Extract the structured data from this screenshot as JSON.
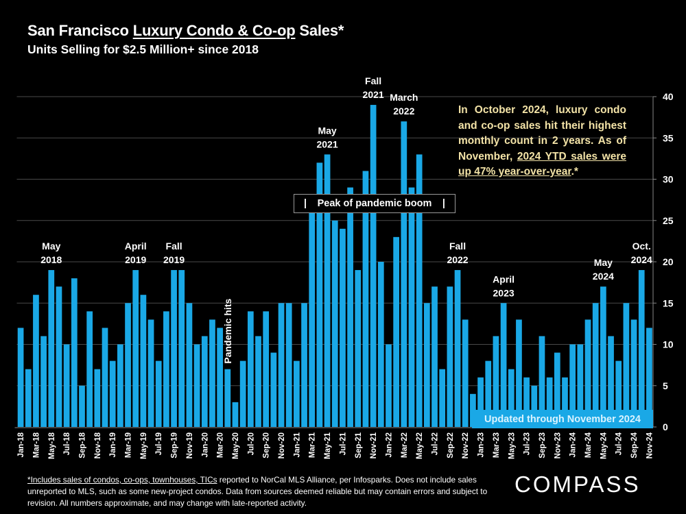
{
  "header": {
    "title_pre": "San Francisco ",
    "title_underlined": "Luxury Condo & Co-op",
    "title_post": " Sales*",
    "subtitle": "Units Selling for $2.5 Million+ since 2018"
  },
  "callout": {
    "text_pre": "In October 2024, luxury condo and co-op sales hit their highest monthly count in 2 years. As of November, ",
    "text_underlined": "2024 YTD sales were up 47% year-over-year",
    "text_post": ".*"
  },
  "peak_box": {
    "left_bar": "|",
    "label": "Peak of pandemic boom",
    "right_bar": "|"
  },
  "updated_label": "Updated through November 2024",
  "footnote": {
    "underlined": "*Includes sales of condos, co-ops, townhouses, TICs",
    "rest": " reported to NorCal MLS Alliance, per Infosparks. Does not include sales unreported to MLS, such as some new-project condos. Data from sources deemed reliable but may contain errors and subject to revision.  All numbers approximate, and may change with late-reported activity."
  },
  "logo": "COMPASS",
  "colors": {
    "bar": "#1aa8e6",
    "callout": "#f3e3a7",
    "grid": "#4a4a4a",
    "background": "#000000"
  },
  "chart_data": {
    "type": "bar",
    "title": "San Francisco Luxury Condo & Co-op Sales*",
    "subtitle": "Units Selling for $2.5 Million+ since 2018",
    "xlabel": "",
    "ylabel": "",
    "ylim": [
      0,
      40
    ],
    "yticks": [
      0,
      5,
      10,
      15,
      20,
      25,
      30,
      35,
      40
    ],
    "y_axis_side": "right",
    "grid": true,
    "categories": [
      "Jan-18",
      "Feb-18",
      "Mar-18",
      "Apr-18",
      "May-18",
      "Jun-18",
      "Jul-18",
      "Aug-18",
      "Sep-18",
      "Oct-18",
      "Nov-18",
      "Dec-18",
      "Jan-19",
      "Feb-19",
      "Mar-19",
      "Apr-19",
      "May-19",
      "Jun-19",
      "Jul-19",
      "Aug-19",
      "Sep-19",
      "Oct-19",
      "Nov-19",
      "Dec-19",
      "Jan-20",
      "Feb-20",
      "Mar-20",
      "Apr-20",
      "May-20",
      "Jun-20",
      "Jul-20",
      "Aug-20",
      "Sep-20",
      "Oct-20",
      "Nov-20",
      "Dec-20",
      "Jan-21",
      "Feb-21",
      "Mar-21",
      "Apr-21",
      "May-21",
      "Jun-21",
      "Jul-21",
      "Aug-21",
      "Sep-21",
      "Oct-21",
      "Nov-21",
      "Dec-21",
      "Jan-22",
      "Feb-22",
      "Mar-22",
      "Apr-22",
      "May-22",
      "Jun-22",
      "Jul-22",
      "Aug-22",
      "Sep-22",
      "Oct-22",
      "Nov-22",
      "Dec-22",
      "Jan-23",
      "Feb-23",
      "Mar-23",
      "Apr-23",
      "May-23",
      "Jun-23",
      "Jul-23",
      "Aug-23",
      "Sep-23",
      "Oct-23",
      "Nov-23",
      "Dec-23",
      "Jan-24",
      "Feb-24",
      "Mar-24",
      "Apr-24",
      "May-24",
      "Jun-24",
      "Jul-24",
      "Aug-24",
      "Sep-24",
      "Oct-24",
      "Nov-24"
    ],
    "values": [
      12,
      7,
      16,
      11,
      19,
      17,
      10,
      18,
      5,
      14,
      7,
      12,
      8,
      10,
      15,
      19,
      16,
      13,
      8,
      14,
      19,
      19,
      15,
      10,
      11,
      13,
      12,
      7,
      3,
      8,
      14,
      11,
      14,
      9,
      15,
      15,
      8,
      15,
      26,
      32,
      33,
      25,
      24,
      29,
      19,
      31,
      39,
      20,
      10,
      23,
      37,
      29,
      33,
      15,
      17,
      7,
      17,
      19,
      13,
      4,
      6,
      8,
      11,
      15,
      7,
      13,
      6,
      5,
      11,
      6,
      9,
      6,
      10,
      10,
      13,
      15,
      17,
      11,
      8,
      15,
      13,
      19,
      12
    ],
    "annotations": [
      {
        "category": "May-18",
        "lines": [
          "May",
          "2018"
        ]
      },
      {
        "category": "Apr-19",
        "lines": [
          "April",
          "2019"
        ]
      },
      {
        "category": "Sep-19",
        "lines": [
          "Fall",
          "2019"
        ]
      },
      {
        "category": "Apr-20",
        "lines": [
          "Pandemic hits"
        ],
        "rotated": true
      },
      {
        "category": "May-21",
        "lines": [
          "May",
          "2021"
        ]
      },
      {
        "category": "Nov-21",
        "lines": [
          "Fall",
          "2021"
        ]
      },
      {
        "category": "Mar-22",
        "lines": [
          "March",
          "2022"
        ]
      },
      {
        "category": "Oct-22",
        "lines": [
          "Fall",
          "2022"
        ]
      },
      {
        "category": "Apr-23",
        "lines": [
          "April",
          "2023"
        ]
      },
      {
        "category": "May-24",
        "lines": [
          "May",
          "2024"
        ]
      },
      {
        "category": "Oct-24",
        "lines": [
          "Oct.",
          "2024"
        ]
      }
    ],
    "tick_every": 2
  }
}
